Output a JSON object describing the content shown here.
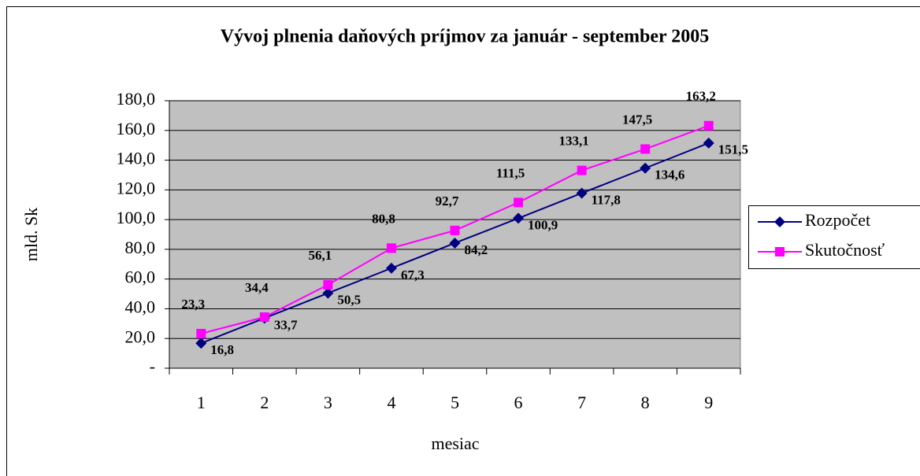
{
  "chart_data": {
    "type": "line",
    "title": "Vývoj plnenia daňových príjmov za január - september 2005",
    "x_label": "mesiac",
    "y_label": "mld. Sk",
    "categories": [
      1,
      2,
      3,
      4,
      5,
      6,
      7,
      8,
      9
    ],
    "series": [
      {
        "name": "Rozpočet",
        "color": "#000080",
        "marker": "diamond",
        "values": [
          16.8,
          33.7,
          50.5,
          67.3,
          84.2,
          100.9,
          117.8,
          134.6,
          151.5
        ],
        "value_labels": [
          "16,8",
          "33,7",
          "50,5",
          "67,3",
          "84,2",
          "100,9",
          "117,8",
          "134,6",
          "151,5"
        ]
      },
      {
        "name": "Skutočnosť",
        "color": "#ff00ff",
        "marker": "square",
        "values": [
          23.3,
          34.4,
          56.1,
          80.8,
          92.7,
          111.5,
          133.1,
          147.5,
          163.2
        ],
        "value_labels": [
          "23,3",
          "34,4",
          "56,1",
          "80,8",
          "92,7",
          "111,5",
          "133,1",
          "147,5",
          "163,2"
        ]
      }
    ],
    "ylim": [
      0,
      180
    ],
    "yticks": [
      {
        "value": 0,
        "label": "-"
      },
      {
        "value": 20,
        "label": "20,0"
      },
      {
        "value": 40,
        "label": "40,0"
      },
      {
        "value": 60,
        "label": "60,0"
      },
      {
        "value": 80,
        "label": "80,0"
      },
      {
        "value": 100,
        "label": "100,0"
      },
      {
        "value": 120,
        "label": "120,0"
      },
      {
        "value": 140,
        "label": "140,0"
      },
      {
        "value": 160,
        "label": "160,0"
      },
      {
        "value": 180,
        "label": "180,0"
      }
    ],
    "grid": true,
    "plot_background": "#c0c0c0",
    "legend": "right"
  }
}
